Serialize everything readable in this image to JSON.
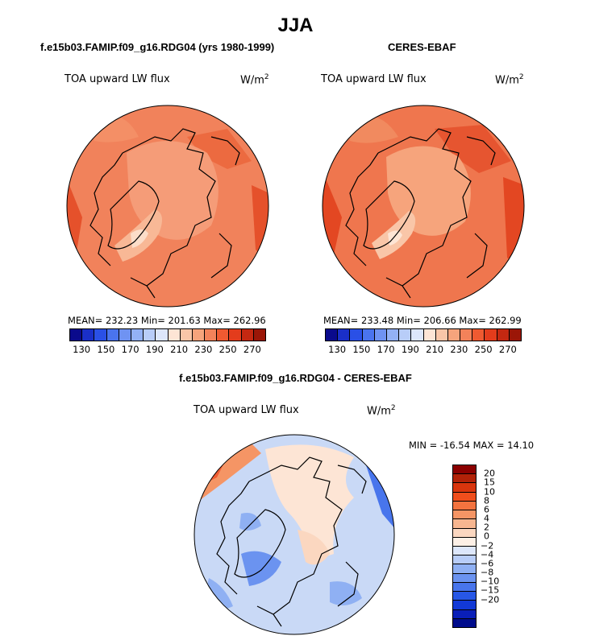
{
  "title": "JJA",
  "panels": [
    {
      "id": "model",
      "title": "f.e15b03.FAMIP.f09_g16.RDG04 (yrs 1980-1999)",
      "variable": "TOA upward LW flux",
      "units_base": "W/m",
      "units_exp": "2",
      "stats": "MEAN= 232.23   Min= 201.63   Max= 262.96"
    },
    {
      "id": "obs",
      "title": "CERES-EBAF",
      "variable": "TOA upward LW flux",
      "units_base": "W/m",
      "units_exp": "2",
      "stats": "MEAN= 233.48   Min= 206.66   Max= 262.99"
    },
    {
      "id": "diff",
      "title": "f.e15b03.FAMIP.f09_g16.RDG04 - CERES-EBAF",
      "variable": "TOA upward LW flux",
      "units_base": "W/m",
      "units_exp": "2",
      "stats": "MIN = -16.54 MAX =  14.10"
    }
  ],
  "colorbar_main": {
    "colors": [
      "#0a0a8c",
      "#1a2fc8",
      "#2a50e6",
      "#4a74ee",
      "#6f93f2",
      "#93b1f5",
      "#b8cdf8",
      "#dde7fb",
      "#fde5d5",
      "#f9c6a8",
      "#f6a47c",
      "#f3825a",
      "#ef5a31",
      "#e33c1c",
      "#c42811",
      "#9b1607"
    ],
    "tick_labels": [
      "130",
      "150",
      "170",
      "190",
      "210",
      "230",
      "250",
      "270"
    ]
  },
  "colorbar_diff": {
    "colors": [
      "#8b0000",
      "#b22208",
      "#d9350d",
      "#f04e1c",
      "#f3733f",
      "#f59565",
      "#f7b690",
      "#fbd7c0",
      "#fdf0e6",
      "#dde7fb",
      "#b8cdf8",
      "#8fb0f3",
      "#6b93f0",
      "#4875ec",
      "#2757e6",
      "#1239d6",
      "#0a1fb8",
      "#000c8c"
    ],
    "tick_labels": [
      "20",
      "15",
      "10",
      "8",
      "6",
      "4",
      "2",
      "0",
      "−2",
      "−4",
      "−6",
      "−8",
      "−10",
      "−15",
      "−20"
    ]
  },
  "colors": {
    "land_outline": "#000000",
    "model_base": "#f1825b",
    "obs_base": "#ef764e",
    "diff_base": "#c9d9f6"
  },
  "chart_data": [
    {
      "type": "heatmap",
      "title": "f.e15b03.FAMIP.f09_g16.RDG04 (yrs 1980-1999)",
      "field": "TOA upward LW flux",
      "units": "W/m2",
      "projection": "north polar stereographic",
      "mean": 232.23,
      "min": 201.63,
      "max": 262.96,
      "levels": [
        130,
        140,
        150,
        160,
        170,
        180,
        190,
        200,
        210,
        220,
        230,
        240,
        250,
        260,
        270
      ]
    },
    {
      "type": "heatmap",
      "title": "CERES-EBAF",
      "field": "TOA upward LW flux",
      "units": "W/m2",
      "projection": "north polar stereographic",
      "mean": 233.48,
      "min": 206.66,
      "max": 262.99,
      "levels": [
        130,
        140,
        150,
        160,
        170,
        180,
        190,
        200,
        210,
        220,
        230,
        240,
        250,
        260,
        270
      ]
    },
    {
      "type": "heatmap",
      "title": "f.e15b03.FAMIP.f09_g16.RDG04 - CERES-EBAF",
      "field": "TOA upward LW flux",
      "units": "W/m2",
      "projection": "north polar stereographic",
      "min": -16.54,
      "max": 14.1,
      "levels": [
        -20,
        -15,
        -10,
        -8,
        -6,
        -4,
        -2,
        0,
        2,
        4,
        6,
        8,
        10,
        15,
        20
      ]
    }
  ]
}
